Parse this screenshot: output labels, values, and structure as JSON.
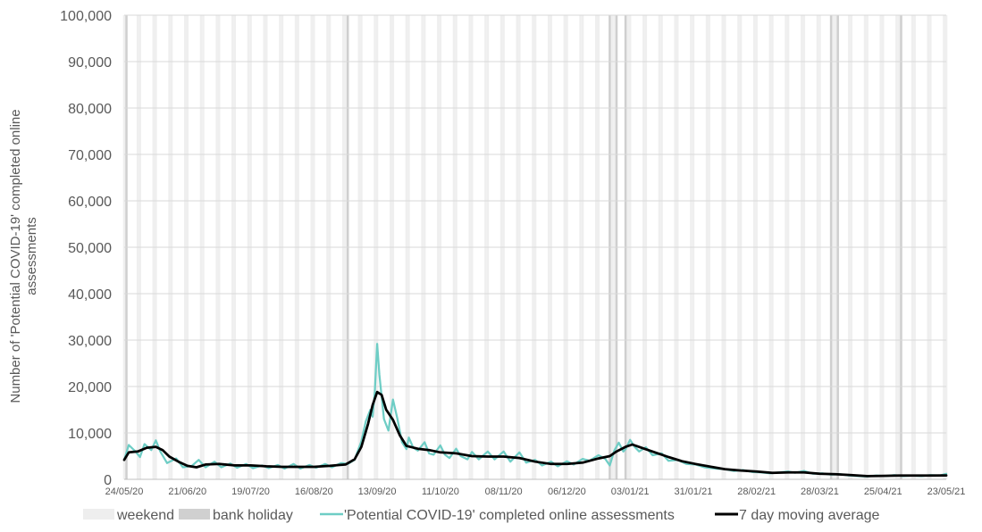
{
  "chart_data": {
    "type": "line",
    "title": "",
    "xlabel": "",
    "ylabel_lines": [
      "Number of 'Potential COVID-19' completed online",
      "assessments"
    ],
    "x_start": "2020-05-24",
    "x_end": "2021-05-23",
    "ylim": [
      0,
      100000
    ],
    "yticks": [
      0,
      10000,
      20000,
      30000,
      40000,
      50000,
      60000,
      70000,
      80000,
      90000,
      100000
    ],
    "ytick_labels": [
      "0",
      "10,000",
      "20,000",
      "30,000",
      "40,000",
      "50,000",
      "60,000",
      "70,000",
      "80,000",
      "90,000",
      "100,000"
    ],
    "xtick_dates": [
      "2020-05-24",
      "2020-06-21",
      "2020-07-19",
      "2020-08-16",
      "2020-09-13",
      "2020-10-11",
      "2020-11-08",
      "2020-12-06",
      "2021-01-03",
      "2021-01-31",
      "2021-02-28",
      "2021-03-28",
      "2021-04-25",
      "2021-05-23"
    ],
    "xtick_labels": [
      "24/05/20",
      "21/06/20",
      "19/07/20",
      "16/08/20",
      "13/09/20",
      "11/10/20",
      "08/11/20",
      "06/12/20",
      "03/01/21",
      "31/01/21",
      "28/02/21",
      "28/03/21",
      "25/04/21",
      "23/05/21"
    ],
    "bank_holidays": [
      "2020-05-25",
      "2020-08-31",
      "2020-12-25",
      "2020-12-28",
      "2021-01-01",
      "2021-04-02",
      "2021-04-05",
      "2021-05-03"
    ],
    "legend_position": "bottom",
    "legend": [
      {
        "label": "weekend",
        "kind": "box",
        "color": "#eeeeee"
      },
      {
        "label": "bank holiday",
        "kind": "box",
        "color": "#d0d0d0"
      },
      {
        "label": "'Potential COVID-19' completed online assessments",
        "kind": "line",
        "color": "#6ecdc5"
      },
      {
        "label": "7 day moving average",
        "kind": "line",
        "color": "#000000"
      }
    ],
    "series": [
      {
        "name": "'Potential COVID-19' completed online assessments",
        "color": "#6ecdc5",
        "points": [
          [
            "2020-05-24",
            4200
          ],
          [
            "2020-05-26",
            7400
          ],
          [
            "2020-05-29",
            6000
          ],
          [
            "2020-05-31",
            4800
          ],
          [
            "2020-06-02",
            7600
          ],
          [
            "2020-06-05",
            6300
          ],
          [
            "2020-06-07",
            8400
          ],
          [
            "2020-06-09",
            6000
          ],
          [
            "2020-06-12",
            3500
          ],
          [
            "2020-06-16",
            4500
          ],
          [
            "2020-06-19",
            2600
          ],
          [
            "2020-06-23",
            2900
          ],
          [
            "2020-06-26",
            4200
          ],
          [
            "2020-06-29",
            2600
          ],
          [
            "2020-07-03",
            3800
          ],
          [
            "2020-07-06",
            2600
          ],
          [
            "2020-07-10",
            3400
          ],
          [
            "2020-07-13",
            2500
          ],
          [
            "2020-07-17",
            3300
          ],
          [
            "2020-07-20",
            2400
          ],
          [
            "2020-07-24",
            3000
          ],
          [
            "2020-07-27",
            2400
          ],
          [
            "2020-07-31",
            3100
          ],
          [
            "2020-08-03",
            2300
          ],
          [
            "2020-08-07",
            3300
          ],
          [
            "2020-08-10",
            2300
          ],
          [
            "2020-08-14",
            3100
          ],
          [
            "2020-08-17",
            2500
          ],
          [
            "2020-08-21",
            3300
          ],
          [
            "2020-08-24",
            2600
          ],
          [
            "2020-08-28",
            3500
          ],
          [
            "2020-08-31",
            3300
          ],
          [
            "2020-09-03",
            4200
          ],
          [
            "2020-09-06",
            8200
          ],
          [
            "2020-09-08",
            12500
          ],
          [
            "2020-09-10",
            15000
          ],
          [
            "2020-09-11",
            13500
          ],
          [
            "2020-09-12",
            19000
          ],
          [
            "2020-09-13",
            29200
          ],
          [
            "2020-09-14",
            22500
          ],
          [
            "2020-09-16",
            13000
          ],
          [
            "2020-09-18",
            10500
          ],
          [
            "2020-09-20",
            17200
          ],
          [
            "2020-09-22",
            13000
          ],
          [
            "2020-09-24",
            8000
          ],
          [
            "2020-09-26",
            6500
          ],
          [
            "2020-09-27",
            9000
          ],
          [
            "2020-09-29",
            6800
          ],
          [
            "2020-10-01",
            6200
          ],
          [
            "2020-10-04",
            8000
          ],
          [
            "2020-10-06",
            5600
          ],
          [
            "2020-10-08",
            5300
          ],
          [
            "2020-10-11",
            7300
          ],
          [
            "2020-10-13",
            5300
          ],
          [
            "2020-10-15",
            4600
          ],
          [
            "2020-10-18",
            6600
          ],
          [
            "2020-10-20",
            5000
          ],
          [
            "2020-10-23",
            4300
          ],
          [
            "2020-10-25",
            5900
          ],
          [
            "2020-10-28",
            4300
          ],
          [
            "2020-11-01",
            6000
          ],
          [
            "2020-11-04",
            4300
          ],
          [
            "2020-11-08",
            6000
          ],
          [
            "2020-11-11",
            3800
          ],
          [
            "2020-11-15",
            5800
          ],
          [
            "2020-11-18",
            3600
          ],
          [
            "2020-11-22",
            4200
          ],
          [
            "2020-11-25",
            3000
          ],
          [
            "2020-11-29",
            3800
          ],
          [
            "2020-12-02",
            2800
          ],
          [
            "2020-12-06",
            3900
          ],
          [
            "2020-12-09",
            3200
          ],
          [
            "2020-12-13",
            4400
          ],
          [
            "2020-12-16",
            4000
          ],
          [
            "2020-12-20",
            5200
          ],
          [
            "2020-12-23",
            4400
          ],
          [
            "2020-12-25",
            3000
          ],
          [
            "2020-12-27",
            6200
          ],
          [
            "2020-12-29",
            7900
          ],
          [
            "2020-12-31",
            6000
          ],
          [
            "2021-01-01",
            6500
          ],
          [
            "2021-01-03",
            8500
          ],
          [
            "2021-01-05",
            7000
          ],
          [
            "2021-01-07",
            6000
          ],
          [
            "2021-01-10",
            6900
          ],
          [
            "2021-01-13",
            5200
          ],
          [
            "2021-01-17",
            5600
          ],
          [
            "2021-01-20",
            4000
          ],
          [
            "2021-01-24",
            4200
          ],
          [
            "2021-01-28",
            3300
          ],
          [
            "2021-02-01",
            3200
          ],
          [
            "2021-02-05",
            2600
          ],
          [
            "2021-02-10",
            2300
          ],
          [
            "2021-02-14",
            2200
          ],
          [
            "2021-02-18",
            1800
          ],
          [
            "2021-02-22",
            2000
          ],
          [
            "2021-02-26",
            1600
          ],
          [
            "2021-03-02",
            1500
          ],
          [
            "2021-03-06",
            1300
          ],
          [
            "2021-03-10",
            1500
          ],
          [
            "2021-03-14",
            1700
          ],
          [
            "2021-03-17",
            1400
          ],
          [
            "2021-03-21",
            1800
          ],
          [
            "2021-03-25",
            1200
          ],
          [
            "2021-03-29",
            1300
          ],
          [
            "2021-04-02",
            1000
          ],
          [
            "2021-04-06",
            1100
          ],
          [
            "2021-04-10",
            800
          ],
          [
            "2021-04-14",
            700
          ],
          [
            "2021-04-18",
            600
          ],
          [
            "2021-04-22",
            800
          ],
          [
            "2021-04-26",
            700
          ],
          [
            "2021-04-30",
            900
          ],
          [
            "2021-05-04",
            700
          ],
          [
            "2021-05-08",
            800
          ],
          [
            "2021-05-12",
            700
          ],
          [
            "2021-05-16",
            900
          ],
          [
            "2021-05-20",
            800
          ],
          [
            "2021-05-23",
            1200
          ]
        ]
      },
      {
        "name": "7 day moving average",
        "color": "#000000",
        "points": [
          [
            "2020-05-24",
            4200
          ],
          [
            "2020-05-26",
            5800
          ],
          [
            "2020-05-30",
            6000
          ],
          [
            "2020-06-03",
            6800
          ],
          [
            "2020-06-07",
            7000
          ],
          [
            "2020-06-10",
            6300
          ],
          [
            "2020-06-13",
            4900
          ],
          [
            "2020-06-17",
            3800
          ],
          [
            "2020-06-21",
            2900
          ],
          [
            "2020-06-25",
            2600
          ],
          [
            "2020-06-29",
            3200
          ],
          [
            "2020-07-05",
            3300
          ],
          [
            "2020-07-12",
            3000
          ],
          [
            "2020-07-19",
            3000
          ],
          [
            "2020-07-26",
            2800
          ],
          [
            "2020-08-02",
            2700
          ],
          [
            "2020-08-09",
            2700
          ],
          [
            "2020-08-16",
            2700
          ],
          [
            "2020-08-23",
            2900
          ],
          [
            "2020-08-30",
            3200
          ],
          [
            "2020-09-03",
            4300
          ],
          [
            "2020-09-06",
            7000
          ],
          [
            "2020-09-09",
            12000
          ],
          [
            "2020-09-11",
            16000
          ],
          [
            "2020-09-13",
            18800
          ],
          [
            "2020-09-15",
            18200
          ],
          [
            "2020-09-17",
            15000
          ],
          [
            "2020-09-20",
            12800
          ],
          [
            "2020-09-23",
            9500
          ],
          [
            "2020-09-26",
            7200
          ],
          [
            "2020-10-01",
            6600
          ],
          [
            "2020-10-06",
            6300
          ],
          [
            "2020-10-11",
            5800
          ],
          [
            "2020-10-18",
            5600
          ],
          [
            "2020-10-25",
            5000
          ],
          [
            "2020-11-01",
            4900
          ],
          [
            "2020-11-08",
            4900
          ],
          [
            "2020-11-15",
            4600
          ],
          [
            "2020-11-22",
            3800
          ],
          [
            "2020-11-29",
            3300
          ],
          [
            "2020-12-06",
            3300
          ],
          [
            "2020-12-13",
            3600
          ],
          [
            "2020-12-20",
            4500
          ],
          [
            "2020-12-25",
            5000
          ],
          [
            "2020-12-28",
            6000
          ],
          [
            "2021-01-01",
            7000
          ],
          [
            "2021-01-04",
            7500
          ],
          [
            "2021-01-08",
            6800
          ],
          [
            "2021-01-14",
            5800
          ],
          [
            "2021-01-20",
            4800
          ],
          [
            "2021-01-26",
            3900
          ],
          [
            "2021-02-01",
            3300
          ],
          [
            "2021-02-08",
            2700
          ],
          [
            "2021-02-14",
            2200
          ],
          [
            "2021-02-21",
            1900
          ],
          [
            "2021-02-28",
            1700
          ],
          [
            "2021-03-07",
            1400
          ],
          [
            "2021-03-14",
            1500
          ],
          [
            "2021-03-21",
            1500
          ],
          [
            "2021-03-28",
            1200
          ],
          [
            "2021-04-04",
            1100
          ],
          [
            "2021-04-11",
            900
          ],
          [
            "2021-04-18",
            700
          ],
          [
            "2021-04-25",
            750
          ],
          [
            "2021-05-02",
            800
          ],
          [
            "2021-05-09",
            800
          ],
          [
            "2021-05-16",
            800
          ],
          [
            "2021-05-23",
            850
          ]
        ]
      }
    ]
  }
}
